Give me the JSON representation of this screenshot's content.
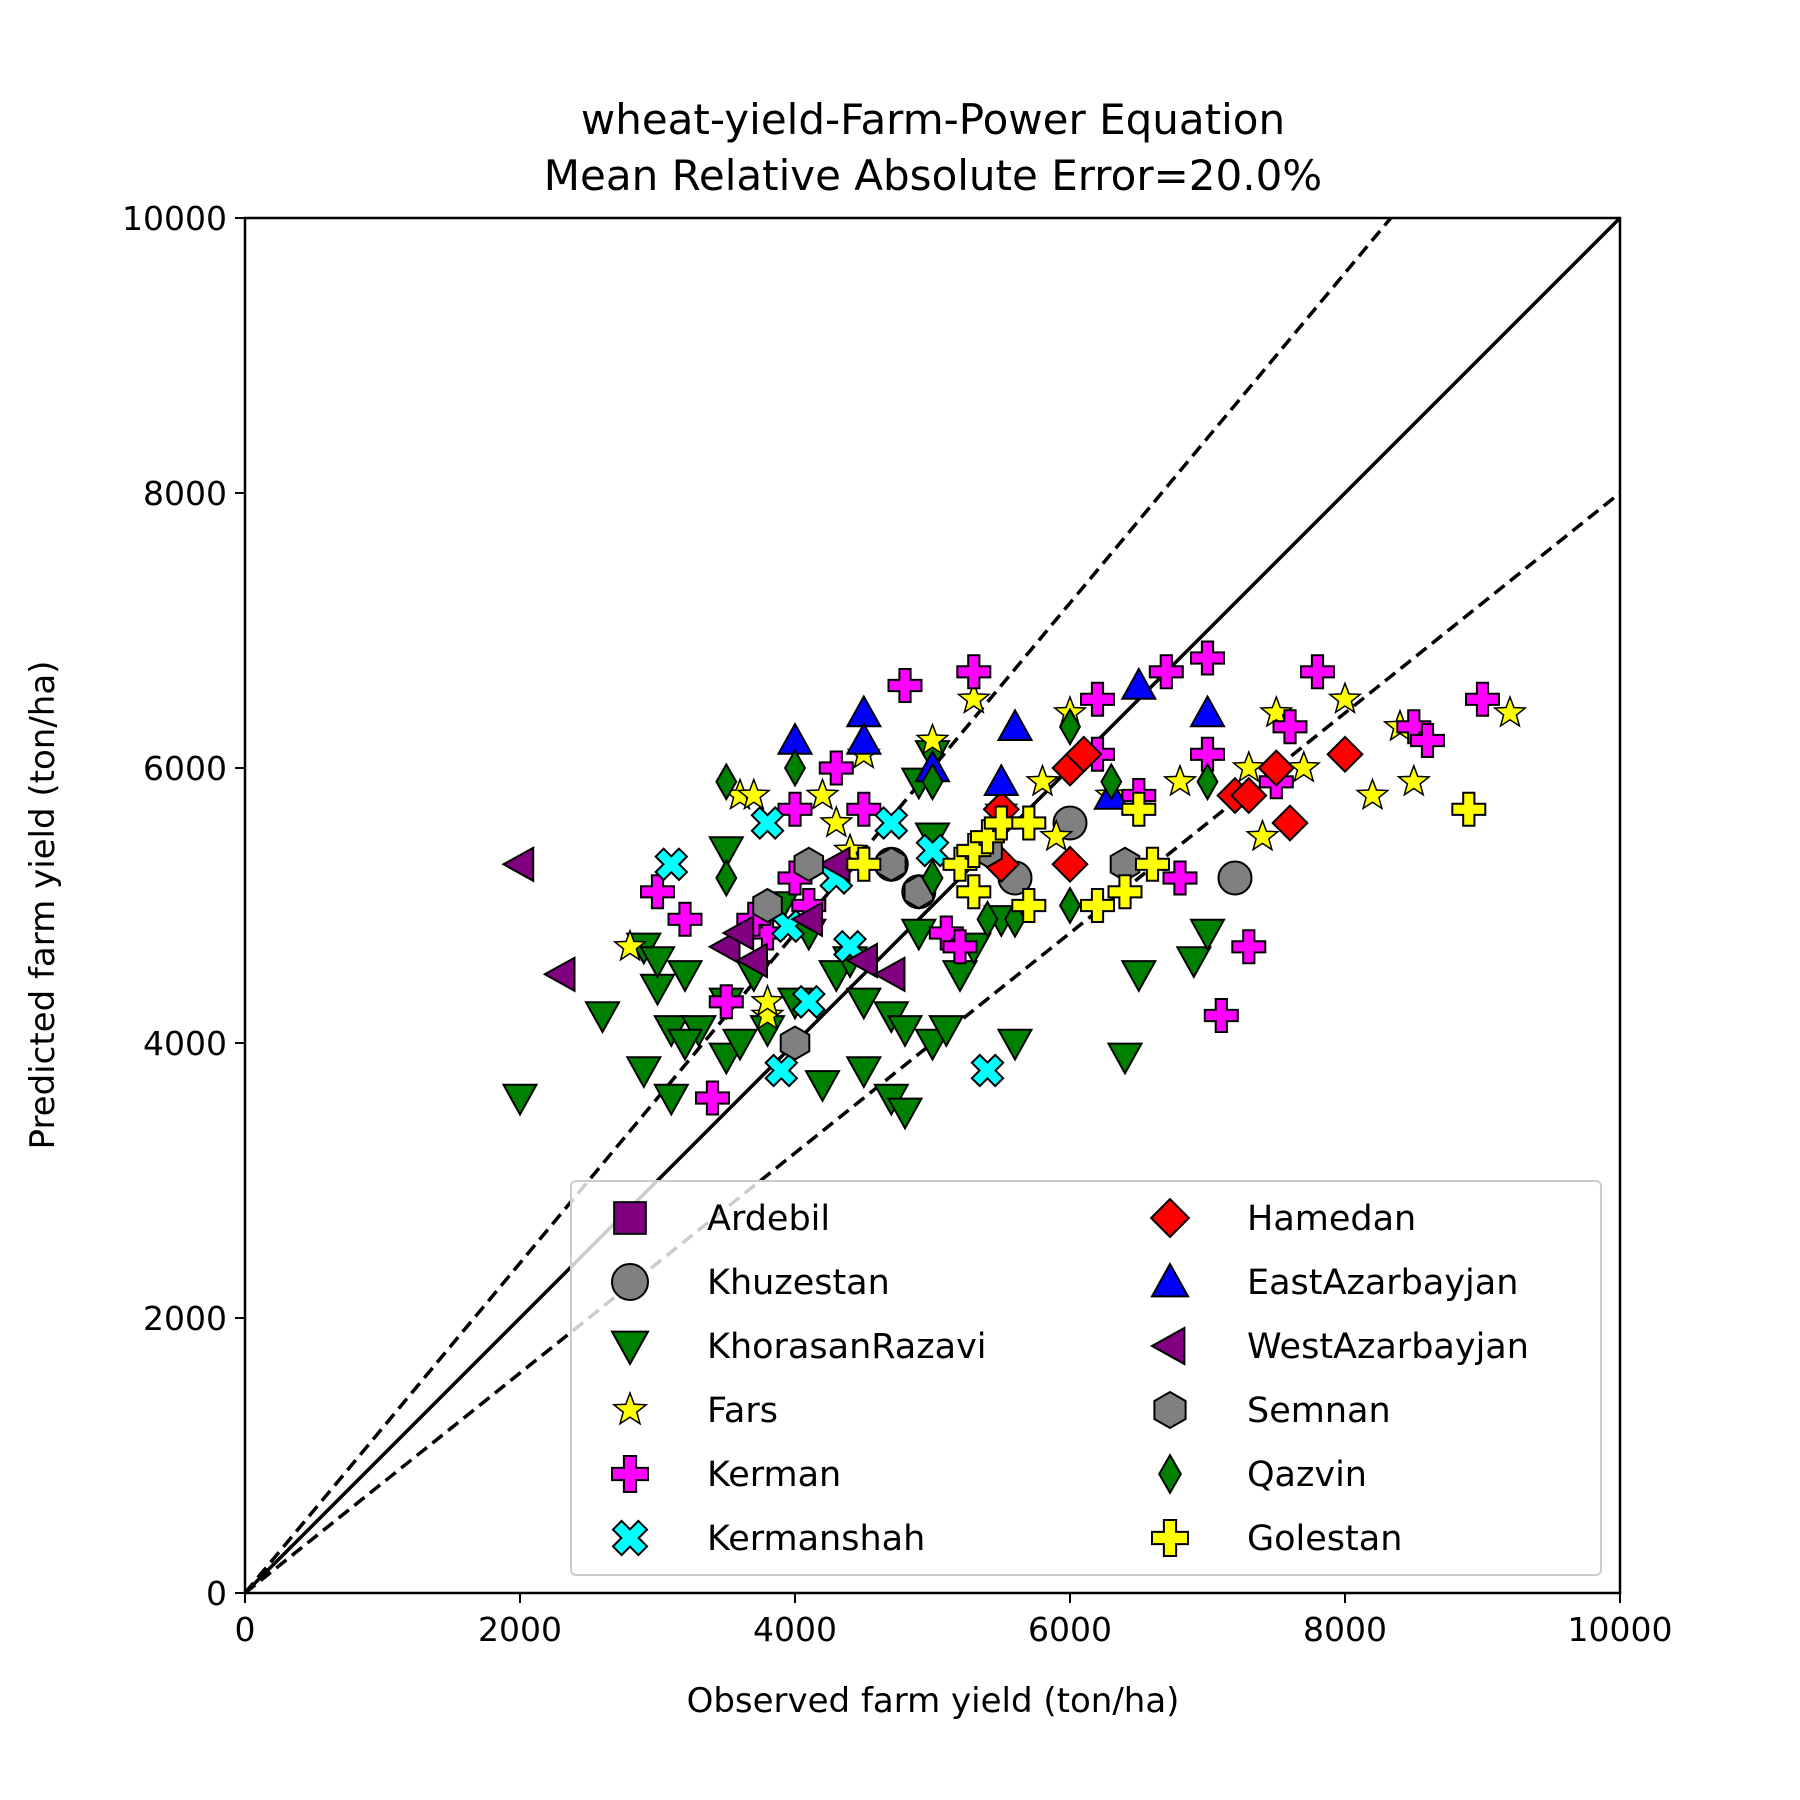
{
  "chart_data": {
    "type": "scatter",
    "title": "wheat-yield-Farm-Power Equation",
    "subtitle": "Mean Relative Absolute Error=20.0%",
    "xlabel": "Observed farm yield (ton/ha)",
    "ylabel": "Predicted farm yield (ton/ha)",
    "xlim": [
      0,
      10000
    ],
    "ylim": [
      0,
      10000
    ],
    "xticks": [
      "0",
      "2000",
      "4000",
      "6000",
      "8000",
      "10000"
    ],
    "yticks": [
      "0",
      "2000",
      "4000",
      "6000",
      "8000",
      "10000"
    ],
    "grid": false,
    "legend_position": "lower-right",
    "reference_lines": [
      {
        "kind": "solid",
        "slope": 1.0
      },
      {
        "kind": "dashed",
        "slope": 1.2
      },
      {
        "kind": "dashed",
        "slope": 0.8
      }
    ],
    "series": [
      {
        "name": "Ardebil",
        "marker": "square",
        "color": "#800080",
        "points": []
      },
      {
        "name": "Khuzestan",
        "marker": "circle",
        "color": "#808080",
        "points": [
          [
            6000,
            5600
          ],
          [
            7200,
            5200
          ],
          [
            5600,
            5200
          ],
          [
            4900,
            5100
          ],
          [
            4700,
            5300
          ]
        ]
      },
      {
        "name": "KhorasanRazavi",
        "marker": "triangle-down",
        "color": "#008000",
        "points": [
          [
            2000,
            3600
          ],
          [
            2600,
            4200
          ],
          [
            2900,
            4700
          ],
          [
            3000,
            4400
          ],
          [
            3100,
            4100
          ],
          [
            3200,
            4500
          ],
          [
            2900,
            3800
          ],
          [
            3100,
            3600
          ],
          [
            3300,
            4100
          ],
          [
            3500,
            4300
          ],
          [
            3500,
            3900
          ],
          [
            3500,
            5400
          ],
          [
            3600,
            4000
          ],
          [
            3700,
            4500
          ],
          [
            3800,
            4100
          ],
          [
            4000,
            4300
          ],
          [
            4100,
            4800
          ],
          [
            4200,
            3700
          ],
          [
            4300,
            4500
          ],
          [
            4500,
            4300
          ],
          [
            4500,
            3800
          ],
          [
            4700,
            4200
          ],
          [
            4800,
            4100
          ],
          [
            4700,
            3600
          ],
          [
            4800,
            3500
          ],
          [
            4900,
            4800
          ],
          [
            5000,
            4000
          ],
          [
            5200,
            4500
          ],
          [
            5300,
            4700
          ],
          [
            5500,
            4900
          ],
          [
            5600,
            4000
          ],
          [
            5000,
            5500
          ],
          [
            4900,
            5900
          ],
          [
            5000,
            6100
          ],
          [
            6400,
            3900
          ],
          [
            6500,
            4500
          ],
          [
            6900,
            4600
          ],
          [
            7000,
            4800
          ],
          [
            3000,
            4600
          ],
          [
            3200,
            4000
          ],
          [
            3900,
            5000
          ],
          [
            4400,
            4600
          ],
          [
            5100,
            4100
          ]
        ]
      },
      {
        "name": "Fars",
        "marker": "star",
        "color": "#ffff00",
        "points": [
          [
            2800,
            4700
          ],
          [
            3600,
            5800
          ],
          [
            3700,
            5800
          ],
          [
            3800,
            4200
          ],
          [
            4200,
            5800
          ],
          [
            4300,
            5600
          ],
          [
            4400,
            5400
          ],
          [
            4500,
            6100
          ],
          [
            5000,
            6200
          ],
          [
            5300,
            6500
          ],
          [
            5500,
            5700
          ],
          [
            5800,
            5900
          ],
          [
            6000,
            6400
          ],
          [
            6300,
            5800
          ],
          [
            6800,
            5900
          ],
          [
            7300,
            6000
          ],
          [
            7400,
            5500
          ],
          [
            7500,
            6400
          ],
          [
            7700,
            6000
          ],
          [
            8000,
            6500
          ],
          [
            8200,
            5800
          ],
          [
            8400,
            6300
          ],
          [
            8500,
            5900
          ],
          [
            9200,
            6400
          ],
          [
            3800,
            4300
          ],
          [
            5900,
            5500
          ]
        ]
      },
      {
        "name": "Kerman",
        "marker": "plus",
        "color": "#ff00ff",
        "points": [
          [
            3400,
            3600
          ],
          [
            3500,
            4300
          ],
          [
            3000,
            5100
          ],
          [
            3200,
            4900
          ],
          [
            3800,
            4800
          ],
          [
            4000,
            5200
          ],
          [
            4000,
            5700
          ],
          [
            4300,
            6000
          ],
          [
            4500,
            5700
          ],
          [
            4800,
            6600
          ],
          [
            5300,
            6700
          ],
          [
            5100,
            4800
          ],
          [
            5200,
            4700
          ],
          [
            6200,
            6500
          ],
          [
            6200,
            6100
          ],
          [
            6500,
            5800
          ],
          [
            6700,
            6700
          ],
          [
            6800,
            5200
          ],
          [
            7000,
            6800
          ],
          [
            7000,
            6100
          ],
          [
            7100,
            4200
          ],
          [
            7300,
            4700
          ],
          [
            7500,
            5900
          ],
          [
            7600,
            6300
          ],
          [
            7800,
            6700
          ],
          [
            8500,
            6300
          ],
          [
            8600,
            6200
          ],
          [
            9000,
            6500
          ],
          [
            3700,
            4900
          ],
          [
            4100,
            5000
          ]
        ]
      },
      {
        "name": "Kermanshah",
        "marker": "x",
        "color": "#00ffff",
        "points": [
          [
            3100,
            5300
          ],
          [
            3800,
            5600
          ],
          [
            3900,
            3800
          ],
          [
            4100,
            4300
          ],
          [
            4400,
            4700
          ],
          [
            4700,
            5600
          ],
          [
            5000,
            5400
          ],
          [
            5400,
            3800
          ],
          [
            4300,
            5200
          ],
          [
            3950,
            4850
          ]
        ]
      },
      {
        "name": "Hamedan",
        "marker": "diamond",
        "color": "#ff0000",
        "points": [
          [
            5500,
            5700
          ],
          [
            5500,
            5300
          ],
          [
            6000,
            5300
          ],
          [
            6000,
            6000
          ],
          [
            6100,
            6100
          ],
          [
            7200,
            5800
          ],
          [
            7300,
            5800
          ],
          [
            7500,
            6000
          ],
          [
            7600,
            5600
          ],
          [
            8000,
            6100
          ]
        ]
      },
      {
        "name": "EastAzarbayjan",
        "marker": "triangle-up",
        "color": "#0000ff",
        "points": [
          [
            4000,
            6200
          ],
          [
            4500,
            6400
          ],
          [
            4500,
            6200
          ],
          [
            5000,
            6000
          ],
          [
            5500,
            5900
          ],
          [
            5600,
            6300
          ],
          [
            6300,
            5800
          ],
          [
            6500,
            6600
          ],
          [
            7000,
            6400
          ]
        ]
      },
      {
        "name": "WestAzarbayjan",
        "marker": "triangle-left",
        "color": "#800080",
        "points": [
          [
            2000,
            5300
          ],
          [
            2300,
            4500
          ],
          [
            3500,
            4700
          ],
          [
            3600,
            4800
          ],
          [
            3700,
            4600
          ],
          [
            4100,
            4900
          ],
          [
            4300,
            5300
          ],
          [
            4500,
            4600
          ],
          [
            4700,
            4500
          ]
        ]
      },
      {
        "name": "Semnan",
        "marker": "hexagon",
        "color": "#808080",
        "points": [
          [
            3800,
            5000
          ],
          [
            4100,
            5300
          ],
          [
            4700,
            5300
          ],
          [
            4900,
            5100
          ],
          [
            5400,
            5400
          ],
          [
            6400,
            5300
          ],
          [
            4000,
            4000
          ]
        ]
      },
      {
        "name": "Qazvin",
        "marker": "diamond-thin",
        "color": "#008000",
        "points": [
          [
            3500,
            5900
          ],
          [
            3500,
            5200
          ],
          [
            4000,
            6000
          ],
          [
            5000,
            5900
          ],
          [
            5000,
            5200
          ],
          [
            5400,
            4900
          ],
          [
            5600,
            4900
          ],
          [
            6000,
            6300
          ],
          [
            6000,
            5000
          ],
          [
            6300,
            5900
          ],
          [
            7000,
            5900
          ]
        ]
      },
      {
        "name": "Golestan",
        "marker": "plus",
        "color": "#ffff00",
        "points": [
          [
            4500,
            5300
          ],
          [
            5200,
            5300
          ],
          [
            5300,
            5100
          ],
          [
            5300,
            5400
          ],
          [
            5400,
            5500
          ],
          [
            5500,
            5600
          ],
          [
            5700,
            5000
          ],
          [
            5700,
            5600
          ],
          [
            6200,
            5000
          ],
          [
            6400,
            5100
          ],
          [
            6500,
            5700
          ],
          [
            6600,
            5300
          ],
          [
            8900,
            5700
          ]
        ]
      }
    ]
  }
}
